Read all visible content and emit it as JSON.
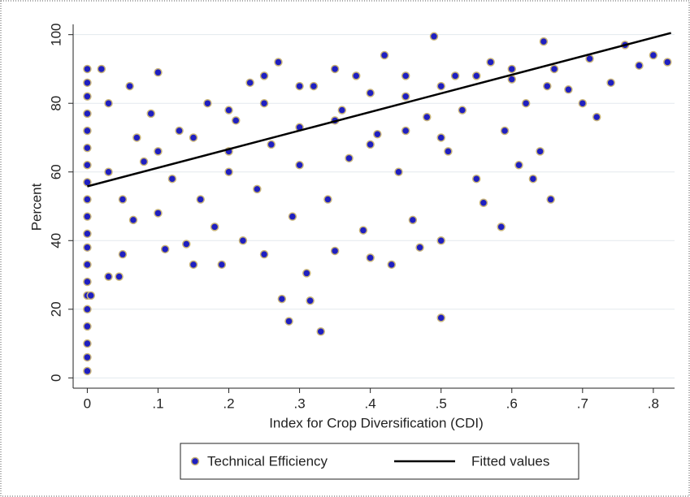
{
  "chart_data": {
    "type": "scatter",
    "xlabel": "Index for Crop Diversification (CDI)",
    "ylabel": "Percent",
    "xlim": [
      -0.02,
      0.83
    ],
    "ylim": [
      -3,
      103
    ],
    "xticks": [
      0,
      {
        "value": 0.1,
        "label": ".1"
      },
      {
        "value": 0.2,
        "label": ".2"
      },
      {
        "value": 0.3,
        "label": ".3"
      },
      {
        "value": 0.4,
        "label": ".4"
      },
      {
        "value": 0.5,
        "label": ".5"
      },
      {
        "value": 0.6,
        "label": ".6"
      },
      {
        "value": 0.7,
        "label": ".7"
      },
      {
        "value": 0.8,
        "label": ".8"
      }
    ],
    "yticks": [
      0,
      20,
      40,
      60,
      80,
      100
    ],
    "grid": true,
    "legend": "bottom",
    "series": [
      {
        "name": "Technical Efficiency",
        "type": "scatter",
        "color": "#1f1fc0",
        "edge_color": "#c8b47a",
        "x": [
          0,
          0,
          0,
          0,
          0,
          0,
          0,
          0,
          0,
          0,
          0,
          0,
          0,
          0,
          0,
          0,
          0,
          0,
          0,
          0,
          0.005,
          0.02,
          0.03,
          0.03,
          0.03,
          0.045,
          0.05,
          0.05,
          0.06,
          0.065,
          0.07,
          0.08,
          0.09,
          0.1,
          0.1,
          0.11,
          0.12,
          0.13,
          0.14,
          0.15,
          0.16,
          0.17,
          0.18,
          0.19,
          0.2,
          0.21,
          0.22,
          0.23,
          0.24,
          0.25,
          0.26,
          0.27,
          0.275,
          0.285,
          0.29,
          0.3,
          0.31,
          0.315,
          0.32,
          0.33,
          0.34,
          0.35,
          0.36,
          0.37,
          0.38,
          0.39,
          0.4,
          0.41,
          0.42,
          0.43,
          0.44,
          0.45,
          0.46,
          0.47,
          0.48,
          0.49,
          0.5,
          0.5,
          0.51,
          0.52,
          0.53,
          0.55,
          0.56,
          0.57,
          0.585,
          0.59,
          0.6,
          0.61,
          0.62,
          0.63,
          0.64,
          0.645,
          0.655,
          0.66,
          0.68,
          0.7,
          0.71,
          0.72,
          0.74,
          0.76,
          0.78,
          0.8,
          0.82,
          0.15,
          0.2,
          0.25,
          0.3,
          0.35,
          0.4,
          0.45,
          0.5,
          0.55,
          0.6,
          0.65,
          0.2,
          0.3,
          0.4,
          0.45,
          0.5,
          0.35,
          0.25,
          0.1
        ],
        "values": [
          2,
          6,
          10,
          15,
          20,
          24,
          28,
          33,
          38,
          42,
          47,
          52,
          57,
          62,
          67,
          72,
          77,
          82,
          86,
          90,
          24,
          90,
          80,
          60,
          29.5,
          29.5,
          36,
          52,
          85,
          46,
          70,
          63,
          77,
          48,
          89,
          37.5,
          58,
          72,
          39,
          33,
          52,
          80,
          44,
          33,
          60,
          75,
          40,
          86,
          55,
          36,
          68,
          92,
          23,
          16.5,
          47,
          73,
          30.5,
          22.5,
          85,
          13.5,
          52,
          37,
          78,
          64,
          88,
          43,
          35,
          71,
          94,
          33,
          60,
          82,
          46,
          38,
          76,
          99.5,
          17.5,
          40,
          66,
          88,
          78,
          58,
          51,
          92,
          44,
          72,
          87,
          62,
          80,
          58,
          66,
          98,
          52,
          90,
          84,
          80,
          93,
          76,
          86,
          97,
          91,
          94,
          92,
          70,
          78,
          80,
          85,
          75,
          83,
          88,
          85,
          88,
          90,
          85,
          66,
          62,
          68,
          72,
          70,
          90,
          88,
          66
        ]
      },
      {
        "name": "Fitted values",
        "type": "line",
        "color": "#000000",
        "x": [
          0,
          0.825
        ],
        "values": [
          55.8,
          100.5
        ]
      }
    ]
  }
}
